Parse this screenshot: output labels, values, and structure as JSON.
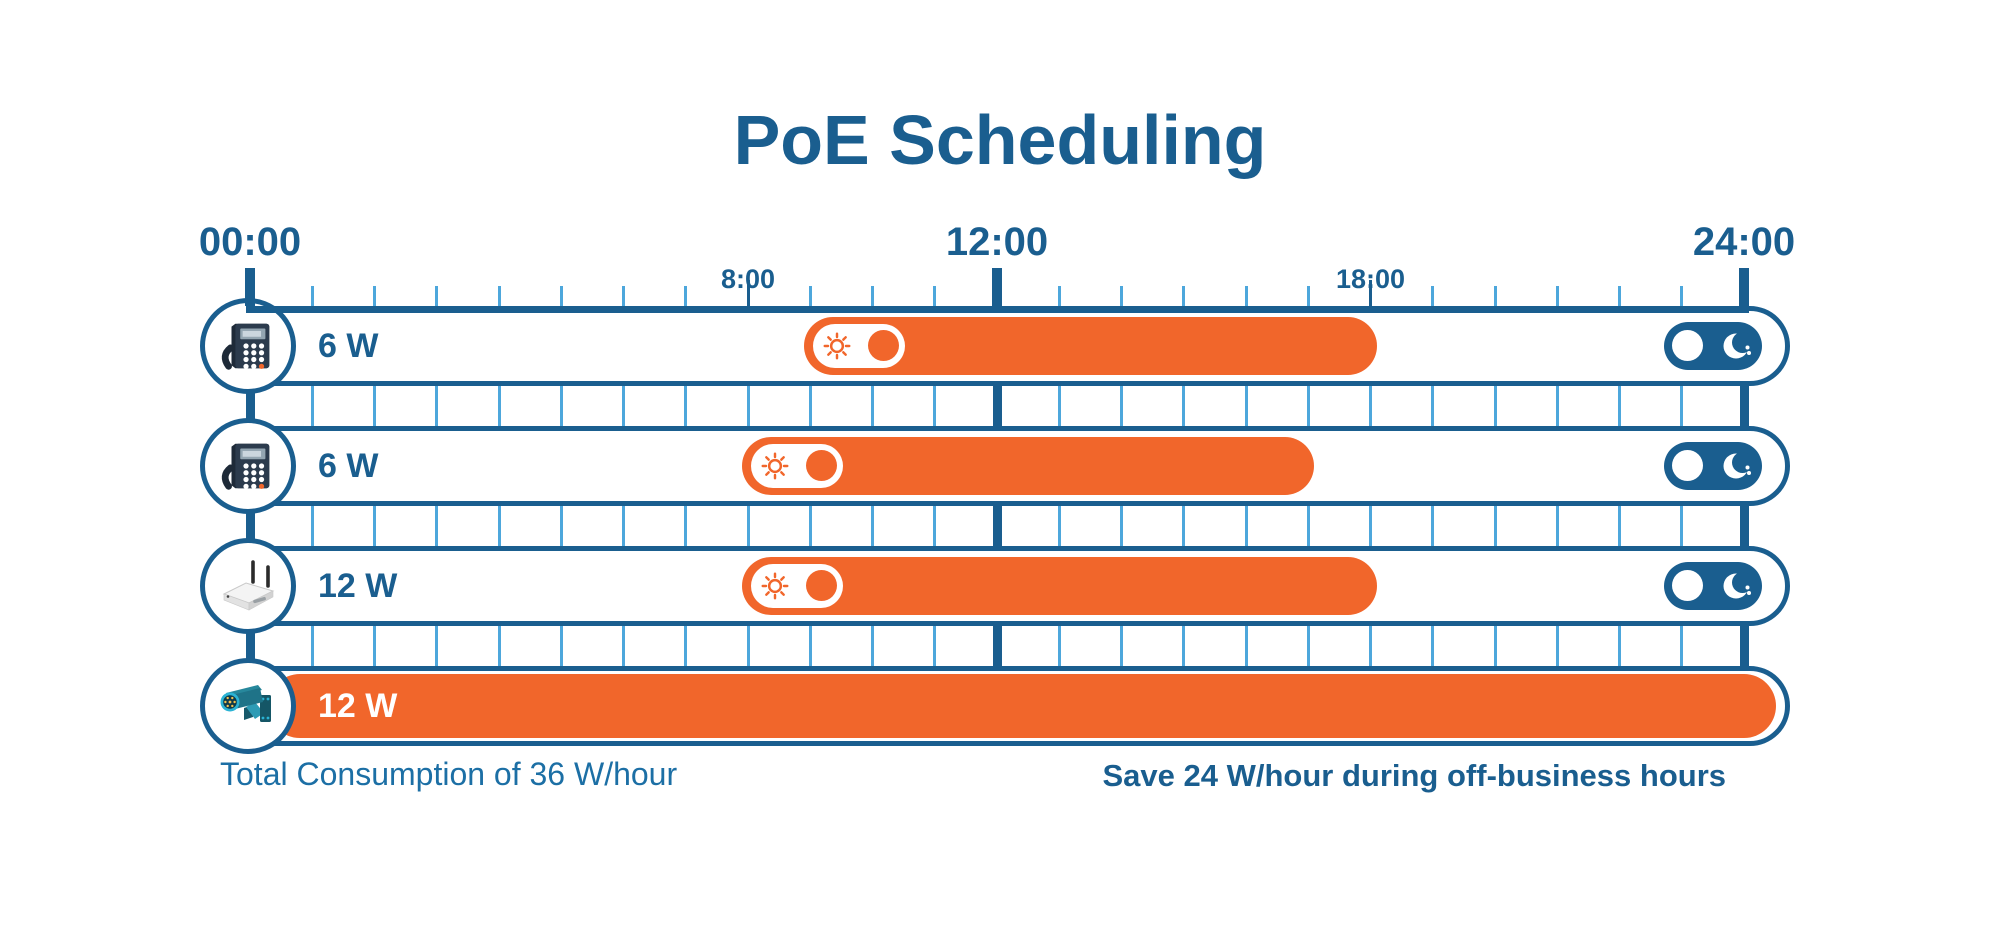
{
  "title": "PoE Scheduling",
  "colors": {
    "dark_blue": "#1A5E8F",
    "light_blue": "#4DA7DC",
    "orange": "#F1662B",
    "footer_left_blue": "#1C6FA5"
  },
  "timeline": {
    "hours_total": 24,
    "major_labels": [
      {
        "text": "00:00",
        "hour": 0
      },
      {
        "text": "12:00",
        "hour": 12
      },
      {
        "text": "24:00",
        "hour": 24
      }
    ],
    "minor_labels": [
      {
        "text": "8:00",
        "hour": 8
      },
      {
        "text": "18:00",
        "hour": 18
      }
    ]
  },
  "rows": [
    {
      "device": "ip-phone",
      "icon": "ip-phone-icon",
      "power_label": "6 W",
      "on_hour": 9,
      "off_hour": 18,
      "always_on": false,
      "day_toggle_icon": "sun-icon",
      "night_toggle_icon": "moon-icon"
    },
    {
      "device": "ip-phone",
      "icon": "ip-phone-icon",
      "power_label": "6 W",
      "on_hour": 8,
      "off_hour": 17,
      "always_on": false,
      "day_toggle_icon": "sun-icon",
      "night_toggle_icon": "moon-icon"
    },
    {
      "device": "wireless-access-point",
      "icon": "access-point-icon",
      "power_label": "12 W",
      "on_hour": 8,
      "off_hour": 18,
      "always_on": false,
      "day_toggle_icon": "sun-icon",
      "night_toggle_icon": "moon-icon"
    },
    {
      "device": "surveillance-camera",
      "icon": "camera-icon",
      "power_label": "12 W",
      "on_hour": 0,
      "off_hour": 24,
      "always_on": true
    }
  ],
  "footer": {
    "left": "Total Consumption of 36 W/hour",
    "right": "Save 24 W/hour during off-business hours"
  }
}
